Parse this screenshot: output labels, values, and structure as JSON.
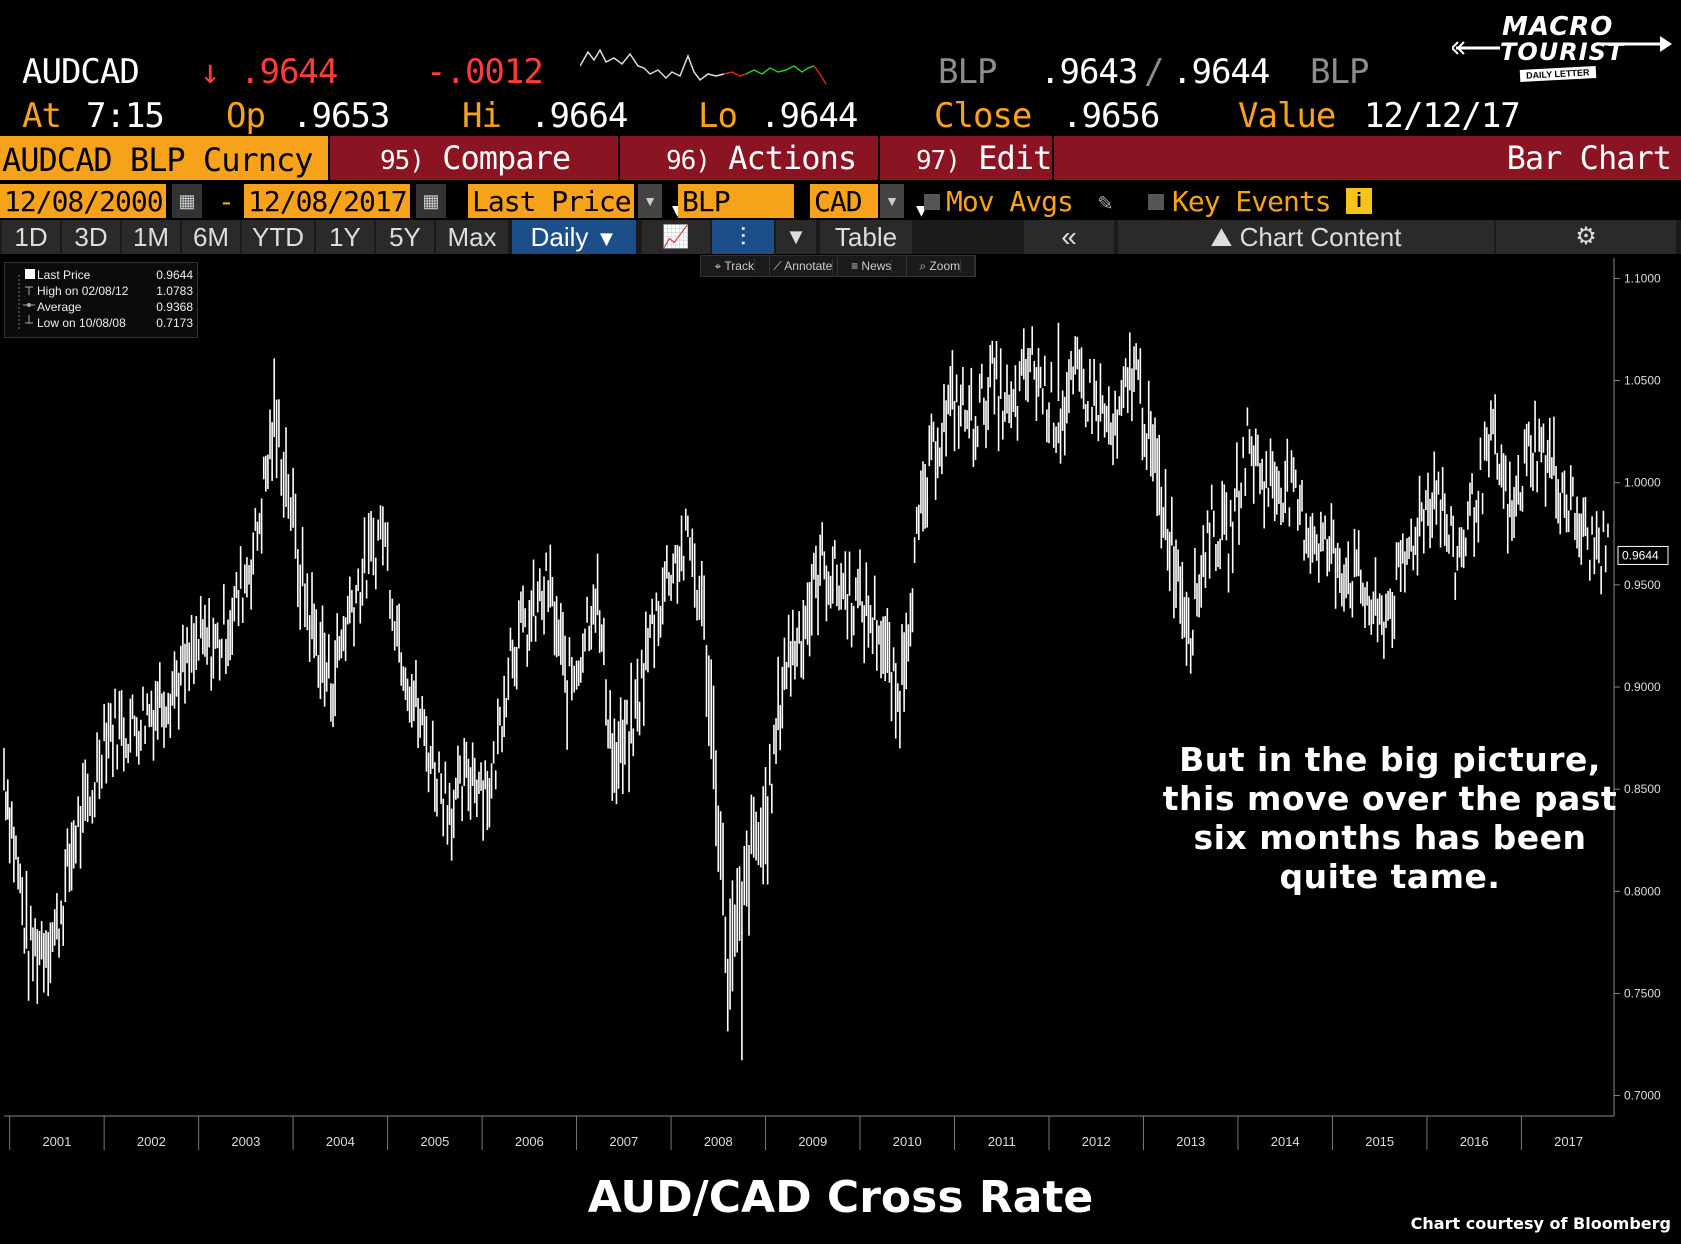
{
  "quote": {
    "ticker": "AUDCAD",
    "arrow": "↓",
    "last": ".9644",
    "change": "-.0012",
    "bid_src": "BLP",
    "bid": ".9643",
    "ask": ".9644",
    "ask_src": "BLP",
    "at_label": "At",
    "at_time": "7:15",
    "op_label": "Op",
    "op": ".9653",
    "hi_label": "Hi",
    "hi": ".9664",
    "lo_label": "Lo",
    "lo": ".9644",
    "close_label": "Close",
    "close": ".9656",
    "value_label": "Value",
    "value_date": "12/12/17"
  },
  "logo": {
    "line1": "MACRO",
    "line2": "TOURIST",
    "tag": "DAILY LETTER"
  },
  "toolbar": {
    "security": "AUDCAD BLP Curncy",
    "compare_num": "95)",
    "compare": "Compare",
    "actions_num": "96)",
    "actions": "Actions",
    "edit_num": "97)",
    "edit": "Edit",
    "chart_type": "Bar Chart",
    "start_date": "12/08/2000",
    "dash": "-",
    "end_date": "12/08/2017",
    "field": "Last Price",
    "source": "BLP",
    "currency": "CAD",
    "mov_avgs": "Mov Avgs",
    "key_events": "Key Events",
    "periods": [
      "1D",
      "3D",
      "1M",
      "6M",
      "YTD",
      "1Y",
      "5Y",
      "Max"
    ],
    "frequency": "Daily",
    "table": "Table",
    "chart_content": "Chart Content",
    "tools": [
      "Track",
      "Annotate",
      "News",
      "Zoom"
    ]
  },
  "legend": [
    {
      "label": "Last Price",
      "value": "0.9644"
    },
    {
      "label": "High on 02/08/12",
      "value": "1.0783"
    },
    {
      "label": "Average",
      "value": "0.9368"
    },
    {
      "label": "Low on 10/08/08",
      "value": "0.7173"
    }
  ],
  "annotation": [
    "But in the big picture,",
    "this move over the past",
    "six months has been",
    "quite tame."
  ],
  "footer": {
    "title": "AUD/CAD Cross Rate",
    "credit": "Chart courtesy of Bloomberg"
  },
  "colors": {
    "orange": "#f7a21b",
    "red": "#ff3b3b",
    "maroon": "#8b1422",
    "line": "#ffffff"
  },
  "chart_data": {
    "type": "bar",
    "title": "AUD/CAD Cross Rate",
    "ylim": [
      0.69,
      1.11
    ],
    "y_ticks": [
      "1.1000",
      "1.0500",
      "1.0000",
      "0.9500",
      "0.9000",
      "0.8500",
      "0.8000",
      "0.7500",
      "0.7000"
    ],
    "x_ticks": [
      "2001",
      "2002",
      "2003",
      "2004",
      "2005",
      "2006",
      "2007",
      "2008",
      "2009",
      "2010",
      "2011",
      "2012",
      "2013",
      "2014",
      "2015",
      "2016",
      "2017"
    ],
    "last_label": "0.9644",
    "x": [
      2000.94,
      2001.0,
      2001.2,
      2001.5,
      2001.7,
      2001.85,
      2002.0,
      2002.3,
      2002.5,
      2002.7,
      2002.9,
      2003.0,
      2003.2,
      2003.4,
      2003.6,
      2003.8,
      2003.95,
      2004.05,
      2004.2,
      2004.4,
      2004.6,
      2004.8,
      2004.95,
      2005.1,
      2005.3,
      2005.5,
      2005.7,
      2005.9,
      2006.1,
      2006.3,
      2006.5,
      2006.7,
      2006.9,
      2007.0,
      2007.2,
      2007.4,
      2007.6,
      2007.8,
      2008.0,
      2008.2,
      2008.35,
      2008.5,
      2008.6,
      2008.75,
      2008.85,
      2009.0,
      2009.2,
      2009.4,
      2009.6,
      2009.8,
      2010.0,
      2010.2,
      2010.4,
      2010.6,
      2010.8,
      2011.0,
      2011.2,
      2011.4,
      2011.6,
      2011.8,
      2012.0,
      2012.1,
      2012.3,
      2012.5,
      2012.7,
      2012.9,
      2013.1,
      2013.3,
      2013.5,
      2013.7,
      2013.9,
      2014.1,
      2014.3,
      2014.5,
      2014.7,
      2014.9,
      2015.1,
      2015.3,
      2015.5,
      2015.7,
      2015.9,
      2016.1,
      2016.3,
      2016.5,
      2016.7,
      2016.9,
      2017.1,
      2017.3,
      2017.5,
      2017.7,
      2017.94
    ],
    "values": [
      0.86,
      0.84,
      0.77,
      0.78,
      0.83,
      0.84,
      0.88,
      0.88,
      0.89,
      0.9,
      0.91,
      0.92,
      0.92,
      0.94,
      0.97,
      1.03,
      1.0,
      0.96,
      0.93,
      0.9,
      0.94,
      0.96,
      0.98,
      0.93,
      0.89,
      0.86,
      0.84,
      0.86,
      0.85,
      0.92,
      0.93,
      0.95,
      0.9,
      0.91,
      0.95,
      0.86,
      0.88,
      0.93,
      0.96,
      0.97,
      0.93,
      0.84,
      0.76,
      0.79,
      0.82,
      0.83,
      0.91,
      0.93,
      0.96,
      0.95,
      0.94,
      0.93,
      0.89,
      0.97,
      1.02,
      1.04,
      1.03,
      1.05,
      1.03,
      1.06,
      1.04,
      1.03,
      1.05,
      1.04,
      1.02,
      1.06,
      1.01,
      0.97,
      0.93,
      0.98,
      0.97,
      1.02,
      1.0,
      1.0,
      0.98,
      0.97,
      0.96,
      0.95,
      0.93,
      0.95,
      0.98,
      1.0,
      0.96,
      0.99,
      1.02,
      0.98,
      1.02,
      1.01,
      0.99,
      0.97,
      0.9644
    ],
    "ranges": [
      0.03,
      0.03,
      0.04,
      0.03,
      0.04,
      0.03,
      0.03,
      0.03,
      0.03,
      0.03,
      0.03,
      0.03,
      0.03,
      0.03,
      0.03,
      0.04,
      0.04,
      0.04,
      0.04,
      0.04,
      0.03,
      0.03,
      0.03,
      0.03,
      0.03,
      0.03,
      0.03,
      0.03,
      0.03,
      0.03,
      0.03,
      0.03,
      0.04,
      0.03,
      0.03,
      0.04,
      0.04,
      0.03,
      0.03,
      0.03,
      0.04,
      0.06,
      0.07,
      0.06,
      0.05,
      0.05,
      0.04,
      0.04,
      0.03,
      0.03,
      0.03,
      0.03,
      0.04,
      0.04,
      0.03,
      0.03,
      0.03,
      0.03,
      0.03,
      0.03,
      0.03,
      0.03,
      0.03,
      0.03,
      0.03,
      0.03,
      0.04,
      0.04,
      0.04,
      0.03,
      0.03,
      0.03,
      0.03,
      0.03,
      0.03,
      0.03,
      0.03,
      0.03,
      0.03,
      0.03,
      0.03,
      0.03,
      0.03,
      0.03,
      0.03,
      0.03,
      0.03,
      0.03,
      0.03,
      0.03,
      0.02
    ]
  }
}
